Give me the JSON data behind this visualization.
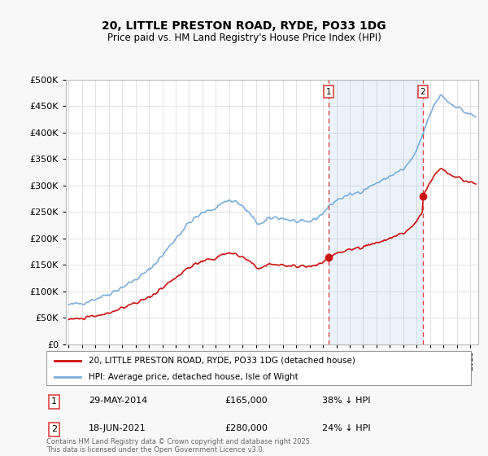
{
  "title": "20, LITTLE PRESTON ROAD, RYDE, PO33 1DG",
  "subtitle": "Price paid vs. HM Land Registry's House Price Index (HPI)",
  "hpi_label": "HPI: Average price, detached house, Isle of Wight",
  "property_label": "20, LITTLE PRESTON ROAD, RYDE, PO33 1DG (detached house)",
  "hpi_color": "#7aaedc",
  "hpi_fill_color": "#ddeeff",
  "property_color": "#cc1111",
  "vline_color": "#dd4444",
  "transaction1": {
    "date": "29-MAY-2014",
    "price": 165000,
    "pct": "38% ↓ HPI",
    "year": 2014.41
  },
  "transaction2": {
    "date": "18-JUN-2021",
    "price": 280000,
    "pct": "24% ↓ HPI",
    "year": 2021.45
  },
  "ylim": [
    0,
    500000
  ],
  "yticks": [
    0,
    50000,
    100000,
    150000,
    200000,
    250000,
    300000,
    350000,
    400000,
    450000,
    500000
  ],
  "footer": "Contains HM Land Registry data © Crown copyright and database right 2025.\nThis data is licensed under the Open Government Licence v3.0.",
  "background_color": "#f8f8f8",
  "plot_background": "#ffffff",
  "grid_color": "#dddddd"
}
